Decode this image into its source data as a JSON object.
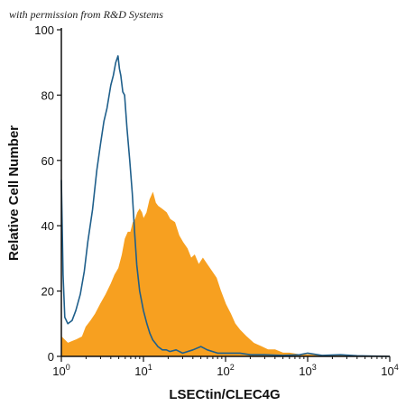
{
  "watermark": "with permission from R&D Systems",
  "chart_data": {
    "type": "area",
    "title": "",
    "xlabel": "LSECtin/CLEC4G",
    "ylabel": "Relative Cell Number",
    "x_scale": "log",
    "xlim": [
      1,
      10000
    ],
    "ylim": [
      0,
      100
    ],
    "x_ticks": [
      {
        "value": 1,
        "base": "10",
        "exp": "0"
      },
      {
        "value": 10,
        "base": "10",
        "exp": "1"
      },
      {
        "value": 100,
        "base": "10",
        "exp": "2"
      },
      {
        "value": 1000,
        "base": "10",
        "exp": "3"
      },
      {
        "value": 10000,
        "base": "10",
        "exp": "4"
      }
    ],
    "y_ticks": [
      "0",
      "20",
      "40",
      "60",
      "80",
      "100"
    ],
    "grid": false,
    "colors": {
      "stained": "#F7A020",
      "control": "#1F5F8B",
      "axis": "#111111"
    },
    "series": [
      {
        "style": "filled",
        "x": [
          1.0,
          1.2,
          1.5,
          1.8,
          2.0,
          2.3,
          2.6,
          3.0,
          3.5,
          4.0,
          4.5,
          5.0,
          5.5,
          6.0,
          6.5,
          7.0,
          7.5,
          8.0,
          8.5,
          9.0,
          9.5,
          10,
          11,
          12,
          13,
          14,
          15,
          17,
          19,
          21,
          24,
          27,
          30,
          34,
          38,
          42,
          47,
          53,
          60,
          68,
          77,
          87,
          100,
          115,
          130,
          150,
          180,
          220,
          270,
          330,
          400,
          500,
          600,
          800,
          1000,
          1300,
          1700,
          2200,
          3000,
          4000,
          6000,
          10000
        ],
        "y": [
          6,
          4,
          5,
          6,
          9,
          11,
          13,
          16,
          19,
          22,
          25,
          27,
          31,
          36,
          38,
          38,
          41,
          42,
          44,
          45,
          44,
          42,
          44,
          48,
          50,
          47,
          46,
          45,
          44,
          42,
          41,
          37,
          35,
          33,
          30,
          31,
          28,
          30,
          28,
          26,
          24,
          20,
          16,
          13,
          10,
          8,
          6,
          4,
          3,
          2,
          2,
          1,
          1,
          0.5,
          0.5,
          0.3,
          0.3,
          0.2,
          0.2,
          0.1,
          0.1,
          0
        ]
      },
      {
        "style": "outline",
        "x": [
          1.0,
          1.02,
          1.05,
          1.1,
          1.2,
          1.35,
          1.5,
          1.7,
          1.9,
          2.1,
          2.4,
          2.7,
          3.0,
          3.3,
          3.6,
          4.0,
          4.3,
          4.6,
          4.9,
          5.1,
          5.3,
          5.6,
          5.9,
          6.3,
          6.8,
          7.3,
          7.8,
          8.3,
          9.0,
          10,
          11,
          12,
          13,
          14,
          15,
          17,
          19,
          21,
          25,
          30,
          40,
          50,
          60,
          80,
          100,
          150,
          200,
          300,
          500,
          800,
          1000,
          1500,
          2500,
          4000,
          10000
        ],
        "y": [
          54,
          42,
          25,
          12,
          10,
          11,
          14,
          19,
          26,
          35,
          45,
          57,
          65,
          72,
          76,
          83,
          86,
          90,
          92,
          88,
          86,
          81,
          80,
          70,
          60,
          50,
          38,
          28,
          20,
          14,
          10,
          7,
          5,
          4,
          3,
          2,
          2,
          1.5,
          2,
          1,
          2,
          3,
          2,
          1,
          1,
          1,
          0.5,
          0.5,
          0.3,
          0.5,
          1,
          0.3,
          0.5,
          0.2,
          0
        ]
      }
    ]
  }
}
